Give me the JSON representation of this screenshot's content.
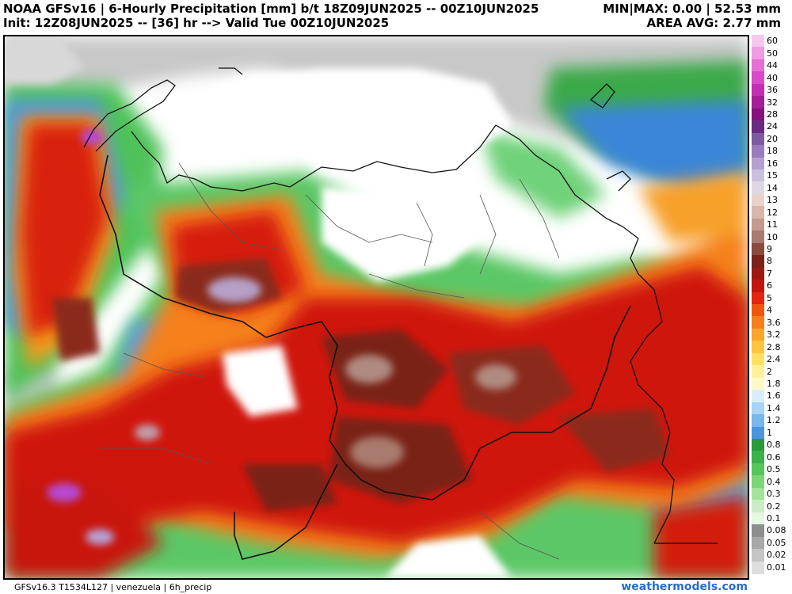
{
  "header": {
    "title_line1": "NOAA GFSv16 | 6-Hourly Precipitation [mm] b/t 18Z09JUN2025 -- 00Z10JUN2025",
    "title_line2": "Init: 12Z08JUN2025 -- [36] hr --> Valid Tue 00Z10JUN2025",
    "minmax": "MIN|MAX: 0.00 | 52.53 mm",
    "area_avg": "AREA AVG: 2.77 mm"
  },
  "footer": {
    "model_info": "GFSv16.3 T1534L127 | venezuela | 6h_precip",
    "brand": "weathermodels.com"
  },
  "colorbar": {
    "labels": [
      "60",
      "50",
      "44",
      "40",
      "36",
      "32",
      "28",
      "24",
      "20",
      "18",
      "16",
      "15",
      "14",
      "13",
      "12",
      "11",
      "10",
      "9",
      "8",
      "7",
      "6",
      "5",
      "4",
      "3.6",
      "3.2",
      "2.8",
      "2.4",
      "2",
      "1.8",
      "1.6",
      "1.4",
      "1.2",
      "1",
      "0.8",
      "0.6",
      "0.5",
      "0.4",
      "0.3",
      "0.2",
      "0.1",
      "0.08",
      "0.05",
      "0.02",
      "0.01"
    ],
    "colors": [
      "#f7c6ef",
      "#f09be3",
      "#e66fd6",
      "#d94bc8",
      "#c52eb3",
      "#a61e9a",
      "#86127f",
      "#6a2a82",
      "#7e5aa2",
      "#9a7bbc",
      "#b3a1cf",
      "#c9c0de",
      "#dfd8e4",
      "#e9d2cc",
      "#d8b6aa",
      "#c49a8e",
      "#a97a6e",
      "#8a4b3c",
      "#7a2218",
      "#9e1a10",
      "#c4140e",
      "#e4260e",
      "#f2560e",
      "#f77f1a",
      "#fba52a",
      "#fdc43e",
      "#fde060",
      "#fff19a",
      "#fffac8",
      "#d8eefc",
      "#a8d4f6",
      "#78b6ee",
      "#4c94e2",
      "#2a9a3a",
      "#3ab34a",
      "#55c65c",
      "#7cd675",
      "#a4e39a",
      "#c9eec3",
      "#e6f7e2",
      "#8e8e8e",
      "#a8a8a8",
      "#c4c4c4",
      "#dedede"
    ]
  }
}
